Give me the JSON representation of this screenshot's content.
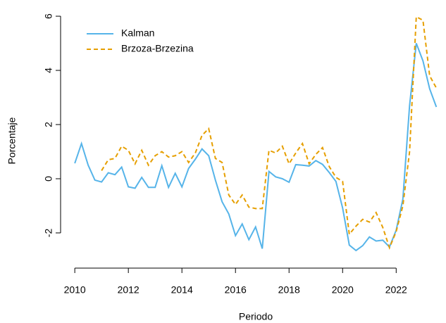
{
  "chart_data": {
    "type": "line",
    "xlabel": "Periodo",
    "ylabel": "Porcentaje",
    "x": [
      2010,
      2010.25,
      2010.5,
      2010.75,
      2011,
      2011.25,
      2011.5,
      2011.75,
      2012,
      2012.25,
      2012.5,
      2012.75,
      2013,
      2013.25,
      2013.5,
      2013.75,
      2014,
      2014.25,
      2014.5,
      2014.75,
      2015,
      2015.25,
      2015.5,
      2015.75,
      2016,
      2016.25,
      2016.5,
      2016.75,
      2017,
      2017.25,
      2017.5,
      2017.75,
      2018,
      2018.25,
      2018.5,
      2018.75,
      2019,
      2019.25,
      2019.5,
      2019.75,
      2020,
      2020.25,
      2020.5,
      2020.75,
      2021,
      2021.25,
      2021.5,
      2021.75,
      2022,
      2022.25,
      2022.5,
      2022.75,
      2023,
      2023.25,
      2023.5
    ],
    "series": [
      {
        "name": "Kalman",
        "color": "#56B4E9",
        "linestyle": "solid",
        "values": [
          0.57,
          1.3,
          0.5,
          -0.05,
          -0.12,
          0.22,
          0.15,
          0.43,
          -0.3,
          -0.35,
          0.05,
          -0.32,
          -0.32,
          0.48,
          -0.32,
          0.2,
          -0.3,
          0.38,
          0.72,
          1.1,
          0.85,
          -0.05,
          -0.85,
          -1.3,
          -2.1,
          -1.67,
          -2.25,
          -1.78,
          -2.58,
          0.27,
          0.07,
          0.0,
          -0.13,
          0.52,
          0.5,
          0.47,
          0.67,
          0.53,
          0.23,
          -0.1,
          -1.08,
          -2.45,
          -2.65,
          -2.47,
          -2.15,
          -2.3,
          -2.27,
          -2.52,
          -1.9,
          -0.75,
          2.7,
          5.0,
          4.35,
          3.32,
          2.65
        ]
      },
      {
        "name": "Brzoza-Brzezina",
        "color": "#E69F00",
        "linestyle": "dashed",
        "values": [
          null,
          null,
          null,
          null,
          0.3,
          0.7,
          0.75,
          1.2,
          1.05,
          0.55,
          1.05,
          0.5,
          0.85,
          1.0,
          0.8,
          0.85,
          1.0,
          0.6,
          0.95,
          1.6,
          1.85,
          0.75,
          0.6,
          -0.6,
          -0.95,
          -0.6,
          -1.05,
          -1.1,
          -1.1,
          1.05,
          0.95,
          1.2,
          0.55,
          0.95,
          1.3,
          0.55,
          0.9,
          1.15,
          0.45,
          0.05,
          -0.1,
          -2.05,
          -1.75,
          -1.5,
          -1.6,
          -1.25,
          -1.8,
          -2.55,
          -1.95,
          -1.0,
          1.0,
          5.98,
          5.85,
          3.8,
          3.35
        ]
      }
    ],
    "xlim": [
      2009.47,
      2023.86
    ],
    "xticks": [
      2010,
      2012,
      2014,
      2016,
      2018,
      2020,
      2022
    ],
    "ylim": [
      -3.3,
      6.3
    ],
    "yticks": [
      -2,
      0,
      2,
      4,
      6
    ],
    "legend": "top-left",
    "grid": false
  }
}
